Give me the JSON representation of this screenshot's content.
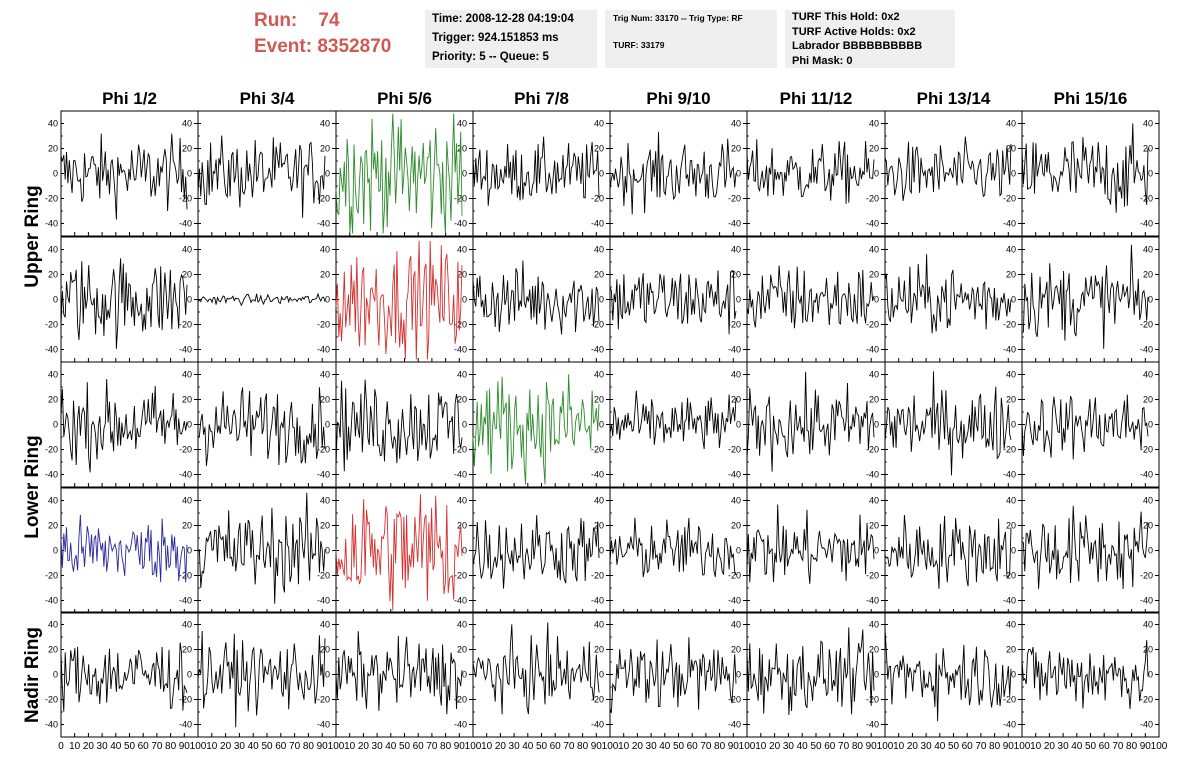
{
  "run_info": {
    "run_label": "Run:",
    "run_value": "74",
    "event_label": "Event:",
    "event_value": "8352870"
  },
  "time_box": {
    "time": "Time: 2008-12-28 04:19:04",
    "trigger": "Trigger: 924.151853 ms",
    "priority": "Priority: 5 -- Queue: 5"
  },
  "trig_box": {
    "trig": "Trig Num: 33170 -- Trig Type: RF",
    "turf": "TURF: 33179"
  },
  "turf_box": {
    "this_hold": "TURF This Hold: 0x2",
    "active_holds": "TURF Active Holds: 0x2",
    "labrador": "Labrador BBBBBBBBBB",
    "phi_mask": "Phi Mask: 0"
  },
  "colors": {
    "run_text": "#d05a52",
    "box_bg": "#efefef",
    "trace_default": "#000000",
    "trace_green": "#2e8b2e",
    "trace_red": "#d43030",
    "trace_blue": "#2a2a9a"
  },
  "chart_data": {
    "type": "line",
    "layout": "grid of waveform panels, 5 rows x 8 columns",
    "columns": [
      "Phi 1/2",
      "Phi 3/4",
      "Phi 5/6",
      "Phi 7/8",
      "Phi 9/10",
      "Phi 11/12",
      "Phi 13/14",
      "Phi 15/16"
    ],
    "row_labels": [
      {
        "label": "Upper Ring",
        "rows": [
          0,
          1
        ]
      },
      {
        "label": "Lower Ring",
        "rows": [
          2,
          3
        ]
      },
      {
        "label": "Nadir Ring",
        "rows": [
          4
        ]
      }
    ],
    "ylim": [
      -50,
      50
    ],
    "y_ticks": [
      "40",
      "20",
      "0",
      "-20",
      "-40"
    ],
    "xlim": [
      0,
      100
    ],
    "x_ticks": [
      "0",
      "10",
      "20",
      "30",
      "40",
      "50",
      "60",
      "70",
      "80",
      "90",
      "100"
    ],
    "samples": 92,
    "grid": false,
    "panels": [
      [
        {
          "amp": 14,
          "color": "black"
        },
        {
          "amp": 14,
          "color": "black"
        },
        {
          "amp": 26,
          "color": "green"
        },
        {
          "amp": 12,
          "color": "black"
        },
        {
          "amp": 13,
          "color": "black"
        },
        {
          "amp": 12,
          "color": "black"
        },
        {
          "amp": 12,
          "color": "black"
        },
        {
          "amp": 16,
          "color": "black"
        }
      ],
      [
        {
          "amp": 17,
          "color": "black"
        },
        {
          "amp": 2,
          "color": "black"
        },
        {
          "amp": 22,
          "color": "red"
        },
        {
          "amp": 14,
          "color": "black"
        },
        {
          "amp": 14,
          "color": "black"
        },
        {
          "amp": 14,
          "color": "black"
        },
        {
          "amp": 14,
          "color": "black"
        },
        {
          "amp": 15,
          "color": "black"
        }
      ],
      [
        {
          "amp": 15,
          "color": "black"
        },
        {
          "amp": 15,
          "color": "black"
        },
        {
          "amp": 17,
          "color": "black"
        },
        {
          "amp": 20,
          "color": "green"
        },
        {
          "amp": 11,
          "color": "black"
        },
        {
          "amp": 15,
          "color": "black"
        },
        {
          "amp": 15,
          "color": "black"
        },
        {
          "amp": 13,
          "color": "black"
        }
      ],
      [
        {
          "amp": 13,
          "color": "blue"
        },
        {
          "amp": 17,
          "color": "black"
        },
        {
          "amp": 27,
          "color": "red"
        },
        {
          "amp": 14,
          "color": "black"
        },
        {
          "amp": 12,
          "color": "black"
        },
        {
          "amp": 14,
          "color": "black"
        },
        {
          "amp": 14,
          "color": "black"
        },
        {
          "amp": 16,
          "color": "black"
        }
      ],
      [
        {
          "amp": 14,
          "color": "black"
        },
        {
          "amp": 14,
          "color": "black"
        },
        {
          "amp": 14,
          "color": "black"
        },
        {
          "amp": 14,
          "color": "black"
        },
        {
          "amp": 14,
          "color": "black"
        },
        {
          "amp": 14,
          "color": "black"
        },
        {
          "amp": 14,
          "color": "black"
        },
        {
          "amp": 14,
          "color": "black"
        }
      ]
    ]
  }
}
